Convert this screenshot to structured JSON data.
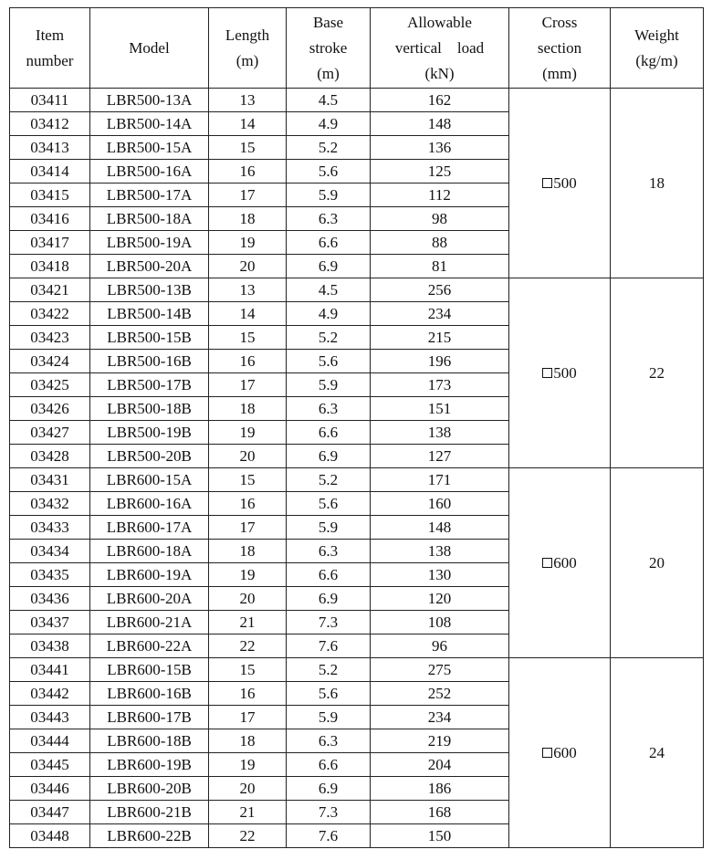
{
  "headers": [
    [
      "Item",
      "number"
    ],
    [
      "Model"
    ],
    [
      "Length",
      "(m)"
    ],
    [
      "Base",
      "stroke",
      "(m)"
    ],
    [
      "Allowable",
      "vertical    load",
      "(kN)"
    ],
    [
      "Cross",
      "section",
      "(mm)"
    ],
    [
      "Weight",
      "(kg/m)"
    ]
  ],
  "groups": [
    {
      "cross_section": "500",
      "weight": "18",
      "rows": [
        [
          "03411",
          "LBR500-13A",
          "13",
          "4.5",
          "162"
        ],
        [
          "03412",
          "LBR500-14A",
          "14",
          "4.9",
          "148"
        ],
        [
          "03413",
          "LBR500-15A",
          "15",
          "5.2",
          "136"
        ],
        [
          "03414",
          "LBR500-16A",
          "16",
          "5.6",
          "125"
        ],
        [
          "03415",
          "LBR500-17A",
          "17",
          "5.9",
          "112"
        ],
        [
          "03416",
          "LBR500-18A",
          "18",
          "6.3",
          "98"
        ],
        [
          "03417",
          "LBR500-19A",
          "19",
          "6.6",
          "88"
        ],
        [
          "03418",
          "LBR500-20A",
          "20",
          "6.9",
          "81"
        ]
      ]
    },
    {
      "cross_section": "500",
      "weight": "22",
      "rows": [
        [
          "03421",
          "LBR500-13B",
          "13",
          "4.5",
          "256"
        ],
        [
          "03422",
          "LBR500-14B",
          "14",
          "4.9",
          "234"
        ],
        [
          "03423",
          "LBR500-15B",
          "15",
          "5.2",
          "215"
        ],
        [
          "03424",
          "LBR500-16B",
          "16",
          "5.6",
          "196"
        ],
        [
          "03425",
          "LBR500-17B",
          "17",
          "5.9",
          "173"
        ],
        [
          "03426",
          "LBR500-18B",
          "18",
          "6.3",
          "151"
        ],
        [
          "03427",
          "LBR500-19B",
          "19",
          "6.6",
          "138"
        ],
        [
          "03428",
          "LBR500-20B",
          "20",
          "6.9",
          "127"
        ]
      ]
    },
    {
      "cross_section": "600",
      "weight": "20",
      "rows": [
        [
          "03431",
          "LBR600-15A",
          "15",
          "5.2",
          "171"
        ],
        [
          "03432",
          "LBR600-16A",
          "16",
          "5.6",
          "160"
        ],
        [
          "03433",
          "LBR600-17A",
          "17",
          "5.9",
          "148"
        ],
        [
          "03434",
          "LBR600-18A",
          "18",
          "6.3",
          "138"
        ],
        [
          "03435",
          "LBR600-19A",
          "19",
          "6.6",
          "130"
        ],
        [
          "03436",
          "LBR600-20A",
          "20",
          "6.9",
          "120"
        ],
        [
          "03437",
          "LBR600-21A",
          "21",
          "7.3",
          "108"
        ],
        [
          "03438",
          "LBR600-22A",
          "22",
          "7.6",
          "96"
        ]
      ]
    },
    {
      "cross_section": "600",
      "weight": "24",
      "rows": [
        [
          "03441",
          "LBR600-15B",
          "15",
          "5.2",
          "275"
        ],
        [
          "03442",
          "LBR600-16B",
          "16",
          "5.6",
          "252"
        ],
        [
          "03443",
          "LBR600-17B",
          "17",
          "5.9",
          "234"
        ],
        [
          "03444",
          "LBR600-18B",
          "18",
          "6.3",
          "219"
        ],
        [
          "03445",
          "LBR600-19B",
          "19",
          "6.6",
          "204"
        ],
        [
          "03446",
          "LBR600-20B",
          "20",
          "6.9",
          "186"
        ],
        [
          "03447",
          "LBR600-21B",
          "21",
          "7.3",
          "168"
        ],
        [
          "03448",
          "LBR600-22B",
          "22",
          "7.6",
          "150"
        ]
      ]
    }
  ]
}
